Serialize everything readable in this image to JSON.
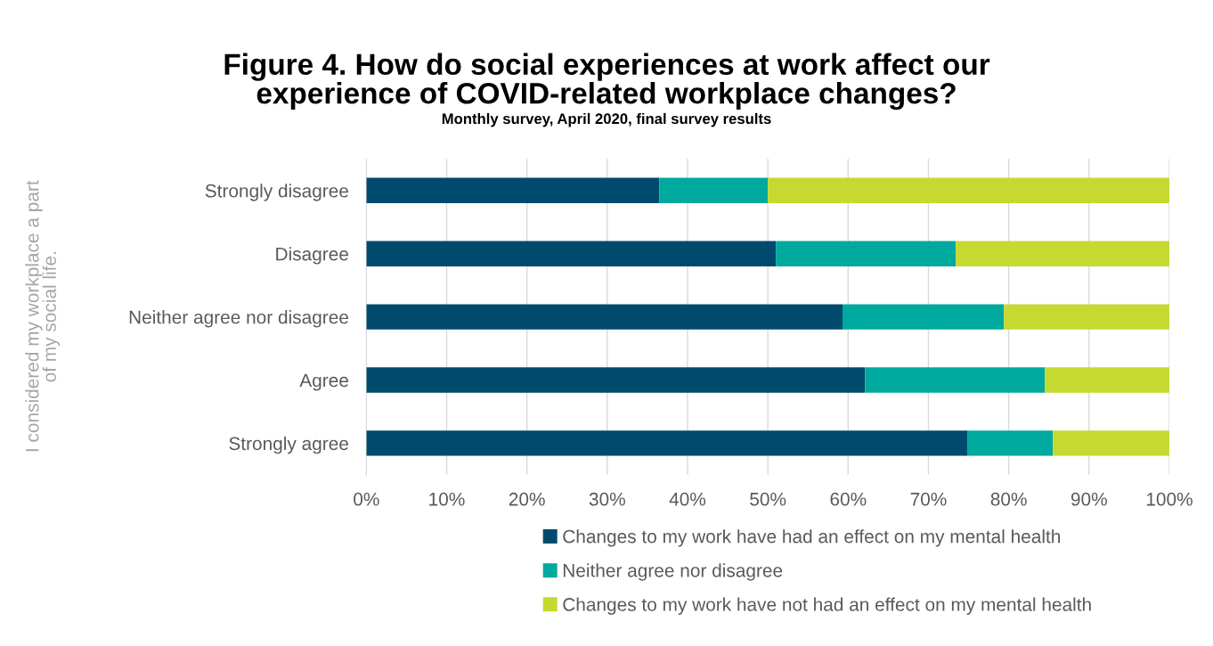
{
  "chart_data": {
    "type": "bar",
    "orientation": "horizontal",
    "stacked": true,
    "title": "Figure 4. How do social experiences at work affect our\nexperience of COVID-related workplace changes?",
    "subtitle": "Monthly survey, April 2020, final survey results",
    "ylabel": "I considered my workplace a part\nof my social life.",
    "categories": [
      "Strongly disagree",
      "Disagree",
      "Neither agree nor disagree",
      "Agree",
      "Strongly agree"
    ],
    "series": [
      {
        "name": "Changes to my work have had an effect on my mental health",
        "color": "#004a6e",
        "values": [
          36.5,
          51.0,
          59.3,
          62.1,
          74.9
        ]
      },
      {
        "name": "Neither agree nor disagree",
        "color": "#00a99d",
        "values": [
          13.5,
          22.4,
          20.1,
          22.4,
          10.6
        ]
      },
      {
        "name": "Changes to my work have not had an effect on my mental health",
        "color": "#c5d930",
        "values": [
          50.0,
          26.6,
          20.6,
          15.5,
          14.5
        ]
      }
    ],
    "xlim": [
      0,
      100
    ],
    "xticks": [
      {
        "value": 0,
        "label": "0%"
      },
      {
        "value": 10,
        "label": "10%"
      },
      {
        "value": 20,
        "label": "20%"
      },
      {
        "value": 30,
        "label": "30%"
      },
      {
        "value": 40,
        "label": "40%"
      },
      {
        "value": 50,
        "label": "50%"
      },
      {
        "value": 60,
        "label": "60%"
      },
      {
        "value": 70,
        "label": "70%"
      },
      {
        "value": 80,
        "label": "80%"
      },
      {
        "value": 90,
        "label": "90%"
      },
      {
        "value": 100,
        "label": "100%"
      }
    ],
    "grid": "x",
    "legend": "bottom"
  }
}
